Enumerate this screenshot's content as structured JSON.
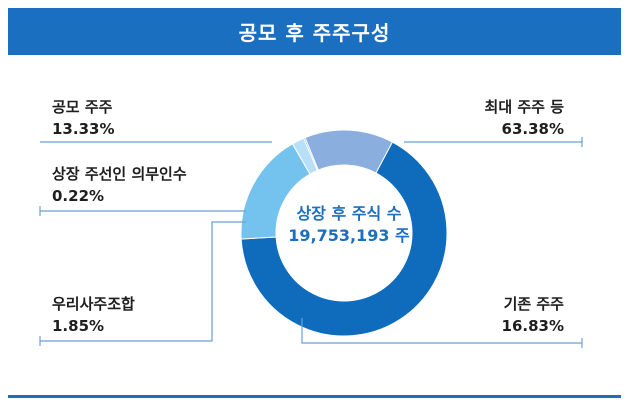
{
  "title": "공모 후 주주구성",
  "center": {
    "line1": "상장 후 주식 수",
    "line2": "19,753,193 주"
  },
  "colors": {
    "accent": "#1a6fc0",
    "leader": "#6a9fd6"
  },
  "chart_data": {
    "type": "pie",
    "donut": true,
    "title": "공모 후 주주구성",
    "slices": [
      {
        "label": "최대 주주 등",
        "value": 63.38,
        "display": "63.38%",
        "color": "#0f6cbd"
      },
      {
        "label": "기존 주주",
        "value": 16.83,
        "display": "16.83%",
        "color": "#74c3ef"
      },
      {
        "label": "우리사주조합",
        "value": 1.85,
        "display": "1.85%",
        "color": "#b7e0f7"
      },
      {
        "label": "상장 주선인 의무인수",
        "value": 0.22,
        "display": "0.22%",
        "color": "#4a8ad6"
      },
      {
        "label": "공모 주주",
        "value": 13.33,
        "display": "13.33%",
        "color": "#8aaede"
      }
    ]
  }
}
